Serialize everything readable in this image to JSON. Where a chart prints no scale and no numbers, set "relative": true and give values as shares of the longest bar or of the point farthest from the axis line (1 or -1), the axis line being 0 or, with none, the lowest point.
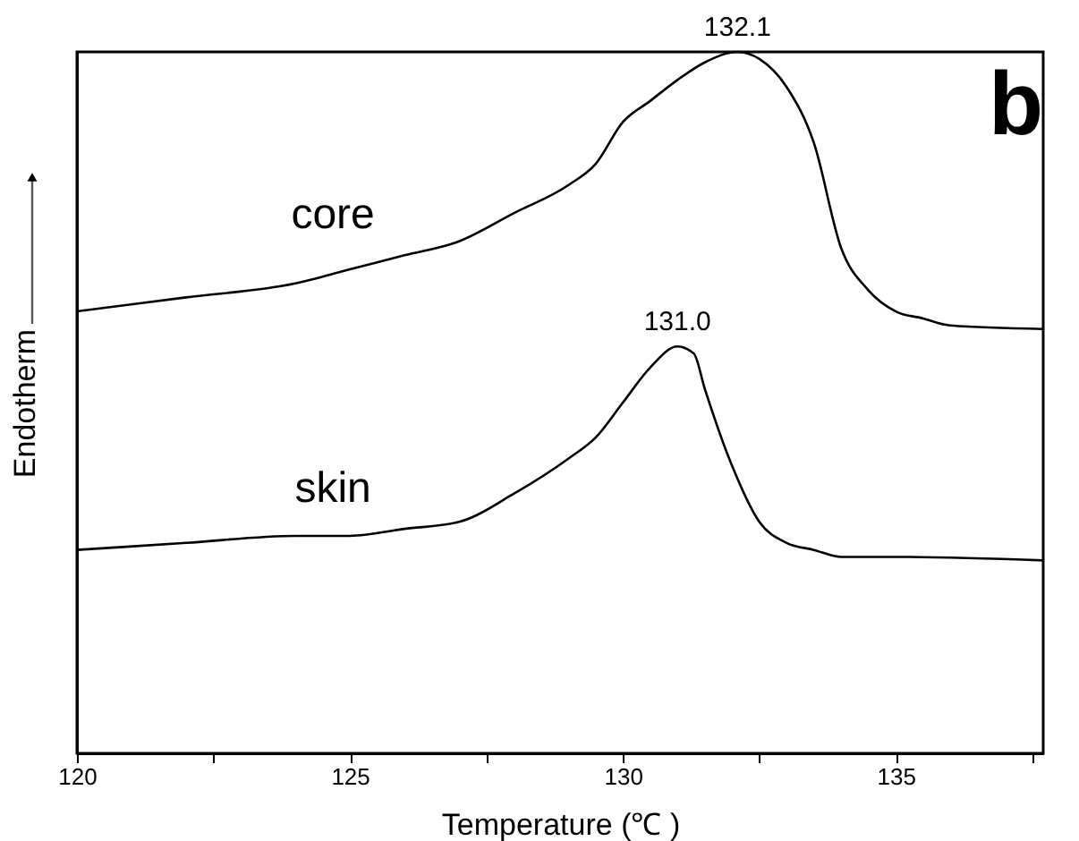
{
  "chart_data": {
    "type": "line",
    "relative": true,
    "xlabel": "Temperature (℃ )",
    "ylabel": "Endotherm",
    "xlim": [
      120,
      137.7
    ],
    "xticks": [
      120,
      {
        "value": 122.5,
        "label": null
      },
      125,
      {
        "value": 127.5,
        "label": null
      },
      130,
      {
        "value": 132.5,
        "label": null
      },
      135,
      {
        "value": 137.5,
        "label": null
      }
    ],
    "tick_labels": "x",
    "grid": false,
    "legend": false,
    "marker": "none",
    "line_style": "solid",
    "series": [
      {
        "name": "core",
        "color": "#000000",
        "x": [
          120,
          122,
          124,
          125,
          126,
          127,
          128,
          129,
          129.5,
          130,
          130.5,
          131,
          131.5,
          132.1,
          132.5,
          133,
          133.5,
          134,
          134.5,
          135,
          135.5,
          136,
          137.7
        ],
        "values": [
          0.63,
          0.65,
          0.67,
          0.69,
          0.71,
          0.73,
          0.77,
          0.81,
          0.84,
          0.9,
          0.93,
          0.96,
          0.985,
          1,
          0.99,
          0.95,
          0.87,
          0.72,
          0.66,
          0.63,
          0.62,
          0.61,
          0.605
        ]
      },
      {
        "name": "skin",
        "color": "#000000",
        "x": [
          120,
          122,
          124,
          125,
          126,
          127,
          128,
          129,
          129.5,
          130,
          130.5,
          131,
          131.3,
          131.5,
          132,
          132.5,
          133,
          133.5,
          134,
          135,
          137.7
        ],
        "values": [
          0.29,
          0.3,
          0.31,
          0.31,
          0.32,
          0.33,
          0.37,
          0.42,
          0.45,
          0.5,
          0.55,
          0.58,
          0.57,
          0.52,
          0.41,
          0.33,
          0.3,
          0.29,
          0.28,
          0.28,
          0.275
        ]
      }
    ],
    "annotations": [
      {
        "text": "132.1",
        "x": 132.1,
        "y": 1
      },
      {
        "text": "131.0",
        "x": 131.0,
        "y": 0.58
      },
      "b"
    ]
  }
}
